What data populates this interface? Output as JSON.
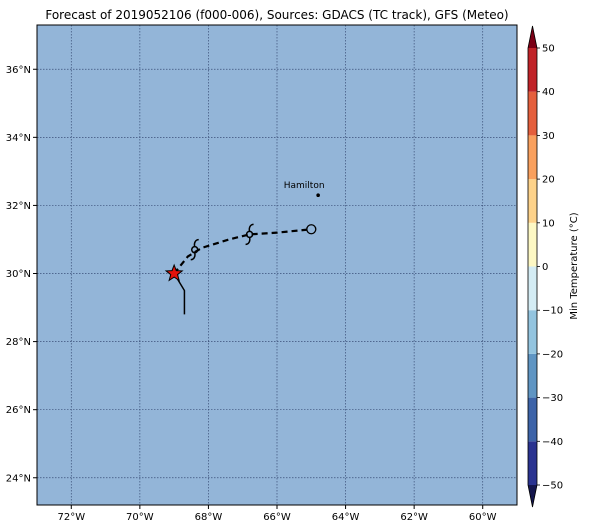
{
  "title": "Forecast of 2019052106 (f000-006), Sources: GDACS (TC track), GFS (Meteo)",
  "map": {
    "ocean_color": "#93b5d8",
    "lon_range": [
      -73,
      -59
    ],
    "lat_range": [
      23.2,
      37.3
    ],
    "lon_ticks": [
      -72,
      -70,
      -68,
      -66,
      -64,
      -62,
      -60
    ],
    "lon_tick_labels": [
      "72°W",
      "70°W",
      "68°W",
      "66°W",
      "64°W",
      "62°W",
      "60°W"
    ],
    "lat_ticks": [
      24,
      26,
      28,
      30,
      32,
      34,
      36
    ],
    "lat_tick_labels": [
      "24°N",
      "26°N",
      "28°N",
      "30°N",
      "32°N",
      "34°N",
      "36°N"
    ],
    "grid": true
  },
  "city": {
    "name": "Hamilton",
    "lon": -64.8,
    "lat": 32.3
  },
  "past_track": [
    [
      -68.7,
      28.8
    ],
    [
      -68.7,
      29.5
    ],
    [
      -69.0,
      30.0
    ]
  ],
  "forecast_track": [
    [
      -69.0,
      30.0
    ],
    [
      -68.6,
      30.5
    ],
    [
      -68.2,
      30.75
    ],
    [
      -67.4,
      31.0
    ],
    [
      -66.8,
      31.15
    ],
    [
      -66.0,
      31.2
    ],
    [
      -65.0,
      31.3
    ]
  ],
  "current_position": {
    "lon": -69.0,
    "lat": 30.0,
    "marker": "star",
    "color": "#e3120b"
  },
  "storm_symbols": [
    {
      "lon": -68.4,
      "lat": 30.7
    },
    {
      "lon": -66.8,
      "lat": 31.15
    }
  ],
  "end_point": {
    "lon": -65.0,
    "lat": 31.3,
    "marker": "open-circle"
  },
  "colorbar": {
    "label": "Min Temperature (°C)",
    "ticks": [
      50,
      40,
      30,
      20,
      10,
      0,
      -10,
      -20,
      -30,
      -40,
      -50
    ],
    "tick_labels": [
      "50",
      "40",
      "30",
      "20",
      "10",
      "0",
      "−10",
      "−20",
      "−30",
      "−40",
      "−50"
    ],
    "levels": [
      -50,
      -40,
      -30,
      -20,
      -10,
      0,
      10,
      20,
      30,
      40,
      50
    ],
    "colors": [
      "#2a3390",
      "#3d63a8",
      "#5f95c3",
      "#93c4df",
      "#d4ecf4",
      "#fdf8c4",
      "#fdd28a",
      "#f9a05e",
      "#e45f3d",
      "#c02328"
    ],
    "under_color": "#14164d",
    "over_color": "#7a0016"
  }
}
